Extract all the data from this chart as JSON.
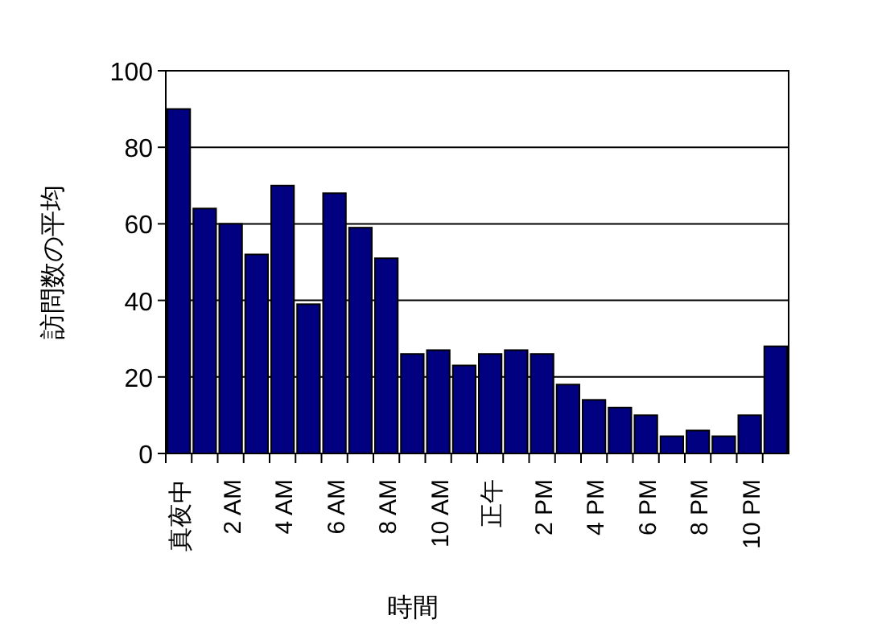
{
  "chart_data": {
    "type": "bar",
    "xlabel": "時間",
    "ylabel": "訪問数の平均",
    "categories": [
      "真夜中",
      null,
      "2 AM",
      null,
      "4 AM",
      null,
      "6 AM",
      null,
      "8 AM",
      null,
      "10 AM",
      null,
      "正午",
      null,
      "2 PM",
      null,
      "4 PM",
      null,
      "6 PM",
      null,
      "8 PM",
      null,
      "10 PM",
      null
    ],
    "values": [
      90,
      64,
      60,
      52,
      70,
      39,
      68,
      59,
      51,
      26,
      27,
      23,
      26,
      27,
      26,
      18,
      14,
      12,
      10,
      4.5,
      6,
      4.5,
      10,
      28
    ],
    "color": "#000080",
    "ylim": [
      0,
      100
    ],
    "yticks": [
      0,
      20,
      40,
      60,
      80,
      100
    ],
    "grid": "y"
  }
}
